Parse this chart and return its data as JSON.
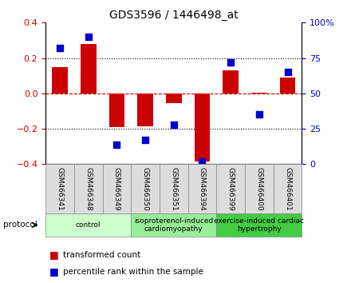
{
  "title": "GDS3596 / 1446498_at",
  "samples": [
    "GSM466341",
    "GSM466348",
    "GSM466349",
    "GSM466350",
    "GSM466351",
    "GSM466394",
    "GSM466399",
    "GSM466400",
    "GSM466401"
  ],
  "transformed_count": [
    0.15,
    0.28,
    -0.19,
    -0.185,
    -0.055,
    -0.385,
    0.13,
    0.005,
    0.09
  ],
  "percentile_rank": [
    82,
    90,
    14,
    17,
    28,
    2,
    72,
    35,
    65
  ],
  "groups": [
    {
      "label": "control",
      "start": 0,
      "end": 3,
      "color": "#ccffcc"
    },
    {
      "label": "isoproterenol-induced\ncardiomyopathy",
      "start": 3,
      "end": 6,
      "color": "#99ee99"
    },
    {
      "label": "exercise-induced cardiac\nhypertrophy",
      "start": 6,
      "end": 9,
      "color": "#44cc44"
    }
  ],
  "ylim_left": [
    -0.4,
    0.4
  ],
  "ylim_right": [
    0,
    100
  ],
  "yticks_left": [
    -0.4,
    -0.2,
    0.0,
    0.2,
    0.4
  ],
  "yticks_right": [
    0,
    25,
    50,
    75,
    100
  ],
  "bar_color": "#cc0000",
  "dot_color": "#0000cc",
  "zero_line_color": "#cc0000",
  "grid_color": "#000000",
  "background_color": "#ffffff",
  "legend_items": [
    "transformed count",
    "percentile rank within the sample"
  ]
}
